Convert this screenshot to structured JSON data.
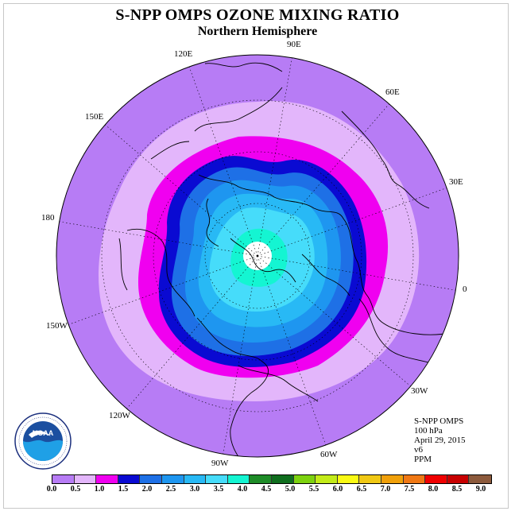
{
  "title": "S-NPP OMPS OZONE MIXING RATIO",
  "subtitle": "Northern Hemisphere",
  "longitude_labels": {
    "lon_90e": "90E",
    "lon_60e": "60E",
    "lon_30e": "30E",
    "lon_0": "0",
    "lon_30w": "30W",
    "lon_60w": "60W",
    "lon_90w": "90W",
    "lon_120w": "120W",
    "lon_150w": "150W",
    "lon_180": "180",
    "lon_150e": "150E",
    "lon_120e": "120E"
  },
  "info": {
    "instrument": "S-NPP OMPS",
    "level": "100 hPa",
    "date": "April 29, 2015",
    "version": "v6",
    "units": "PPM"
  },
  "logo": {
    "text": "NOAA"
  },
  "colorbar": {
    "colors": [
      "#b77cf5",
      "#e3b6fb",
      "#f000f0",
      "#0a0ad2",
      "#1e70e6",
      "#1e96f0",
      "#28b9f5",
      "#46dcfa",
      "#14f5d2",
      "#1e8c28",
      "#0f6e1e",
      "#7dd20f",
      "#c3eb19",
      "#fafa14",
      "#f0c814",
      "#f0a00a",
      "#f07814",
      "#f00000",
      "#c80000",
      "#8c5a3c"
    ],
    "ticks": [
      "0.0",
      "0.5",
      "1.0",
      "1.5",
      "2.0",
      "2.5",
      "3.0",
      "3.5",
      "4.0",
      "4.5",
      "5.0",
      "5.5",
      "6.0",
      "6.5",
      "7.0",
      "7.5",
      "8.0",
      "8.5",
      "9.0"
    ]
  }
}
